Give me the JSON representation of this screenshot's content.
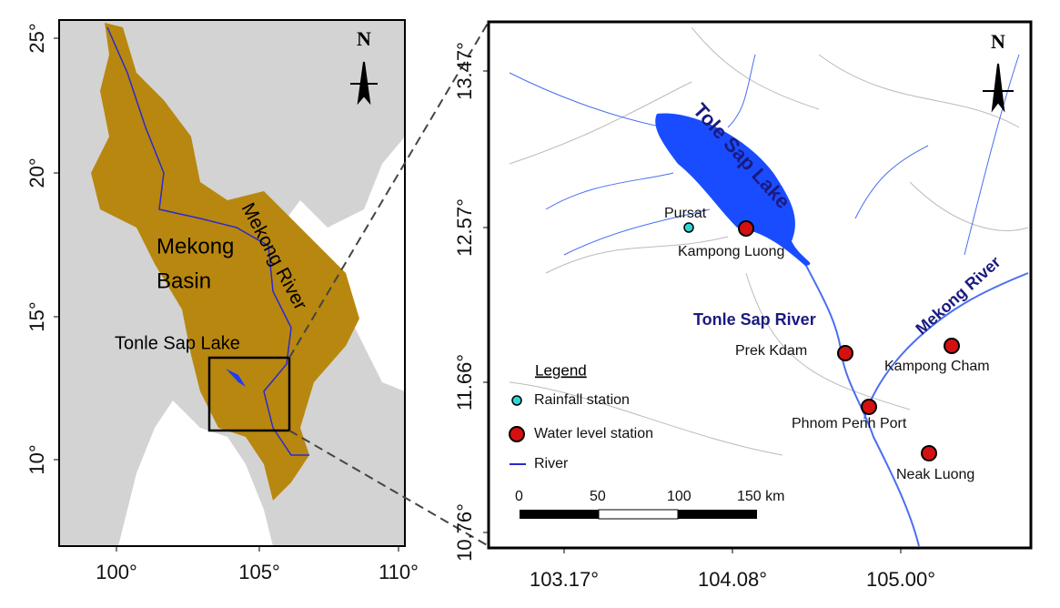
{
  "left_map": {
    "north": "N",
    "basin_label_1": "Mekong",
    "basin_label_2": "Basin",
    "river_label": "Mekong River",
    "lake_label": "Tonle Sap Lake",
    "yticks": [
      "25°",
      "20°",
      "15°",
      "10°"
    ],
    "xticks": [
      "100°",
      "105°",
      "110°"
    ]
  },
  "right_map": {
    "north": "N",
    "lake_label": "Tole Sap Lake",
    "tonle_river_label": "Tonle Sap River",
    "mekong_river_label": "Mekong River",
    "yticks": [
      "13.47°",
      "12.57°",
      "11.66°",
      "10.76°"
    ],
    "xticks": [
      "103.17°",
      "104.08°",
      "105.00°"
    ],
    "stations": {
      "rainfall": [
        "Pursat"
      ],
      "water_level": [
        "Kampong Luong",
        "Prek Kdam",
        "Kampong Cham",
        "Phnom Penh Port",
        "Neak Luong"
      ]
    },
    "legend": {
      "title": "Legend",
      "items": [
        "Rainfall station",
        "Water level station",
        "River"
      ]
    },
    "scale_bar": [
      "0",
      "50",
      "100",
      "150 km"
    ]
  }
}
